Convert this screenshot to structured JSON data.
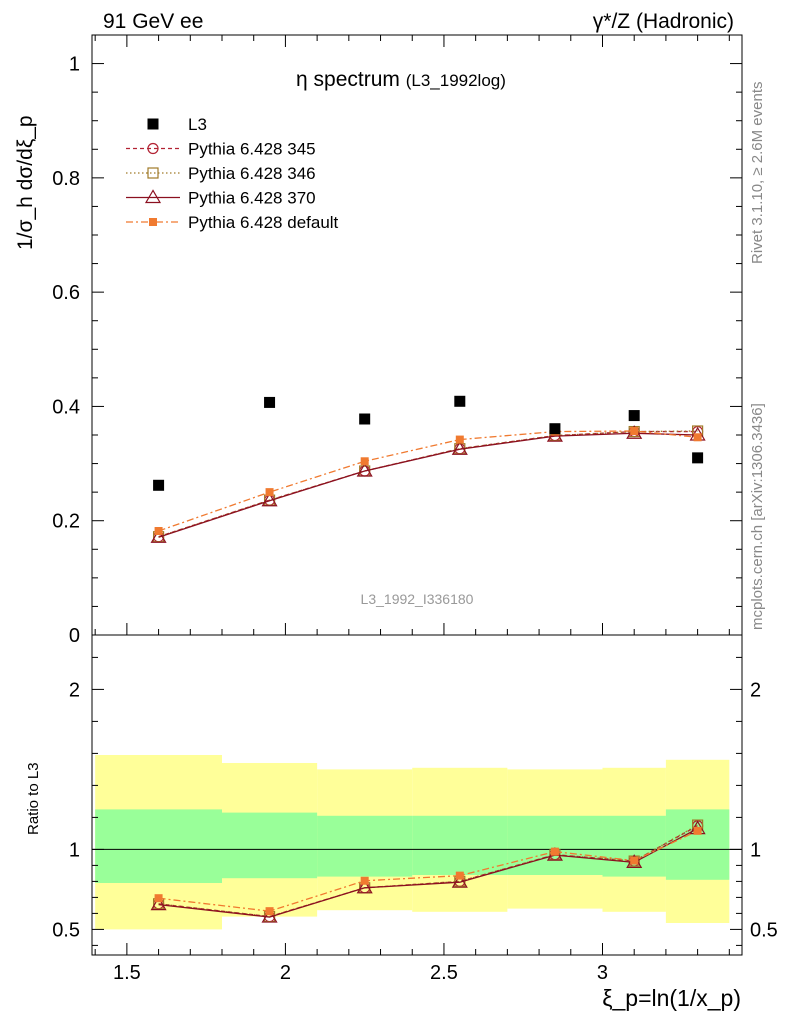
{
  "header": {
    "left": "91 GeV ee",
    "right": "γ*/Z (Hadronic)"
  },
  "side_labels": {
    "rivet": "Rivet 3.1.10, ≥ 2.6M events",
    "mcplots": "mcplots.cern.ch [arXiv:1306.3436]"
  },
  "chart_data": {
    "type": "scatter",
    "title_main": "η spectrum",
    "title_sub": "(L3_1992log)",
    "watermark": "L3_1992_I336180",
    "ylabel": "1/σ_h dσ/dξ_p",
    "ratio_ylabel": "Ratio to L3",
    "xlabel": "ξ_p=ln(1/x_p)",
    "xlim": [
      1.39,
      3.44
    ],
    "ylim": [
      0,
      1.05
    ],
    "ratio_ylim": [
      0.34,
      2.34
    ],
    "x_ticks": [
      "1.5",
      "2",
      "2.5",
      "3"
    ],
    "y_ticks": [
      "0",
      "0.2",
      "0.4",
      "0.6",
      "0.8",
      "1"
    ],
    "ratio_ticks": [
      "0.5",
      "1",
      "2"
    ],
    "x": [
      1.6,
      1.95,
      2.25,
      2.55,
      2.85,
      3.1,
      3.3
    ],
    "bin_edges": [
      1.4,
      1.8,
      2.1,
      2.4,
      2.7,
      3.0,
      3.2,
      3.4
    ],
    "data": {
      "name": "L3",
      "values": [
        0.262,
        0.407,
        0.378,
        0.409,
        0.361,
        0.384,
        0.31
      ]
    },
    "band_inner": [
      [
        0.79,
        1.25
      ],
      [
        0.82,
        1.23
      ],
      [
        0.83,
        1.21
      ],
      [
        0.84,
        1.21
      ],
      [
        0.84,
        1.21
      ],
      [
        0.83,
        1.21
      ],
      [
        0.81,
        1.25
      ]
    ],
    "band_outer": [
      [
        0.5,
        1.59
      ],
      [
        0.58,
        1.54
      ],
      [
        0.62,
        1.5
      ],
      [
        0.61,
        1.51
      ],
      [
        0.63,
        1.5
      ],
      [
        0.61,
        1.51
      ],
      [
        0.54,
        1.56
      ]
    ],
    "series": [
      {
        "name": "Pythia 6.428 345",
        "color": "#b22233",
        "marker": "circle",
        "dash": "4,3",
        "values": [
          0.172,
          0.236,
          0.287,
          0.326,
          0.349,
          0.356,
          0.356
        ]
      },
      {
        "name": "Pythia 6.428 346",
        "color": "#a07a28",
        "marker": "square-open",
        "dash": "1.5,2.5",
        "values": [
          0.172,
          0.236,
          0.287,
          0.326,
          0.349,
          0.356,
          0.357
        ]
      },
      {
        "name": "Pythia 6.428 370",
        "color": "#8b1020",
        "marker": "triangle",
        "dash": "",
        "values": [
          0.171,
          0.235,
          0.287,
          0.325,
          0.348,
          0.353,
          0.35
        ]
      },
      {
        "name": "Pythia 6.428 default",
        "color": "#f07a30",
        "marker": "square",
        "dash": "7,3,2,3",
        "values": [
          0.182,
          0.25,
          0.304,
          0.342,
          0.356,
          0.357,
          0.346
        ]
      }
    ],
    "ratios": [
      [
        0.66,
        0.58,
        0.76,
        0.8,
        0.967,
        0.927,
        1.148
      ],
      [
        0.66,
        0.58,
        0.76,
        0.8,
        0.967,
        0.927,
        1.152
      ],
      [
        0.655,
        0.577,
        0.76,
        0.795,
        0.964,
        0.919,
        1.13
      ],
      [
        0.695,
        0.614,
        0.804,
        0.836,
        0.986,
        0.93,
        1.116
      ]
    ]
  }
}
